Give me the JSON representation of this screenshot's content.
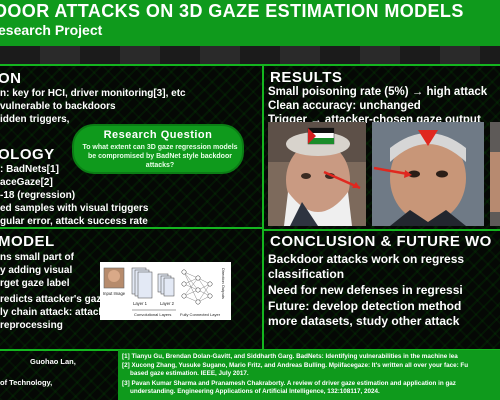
{
  "header": {
    "title": "DOOR ATTACKS ON 3D GAZE ESTIMATION MODELS",
    "subtitle": "esearch Project"
  },
  "left": {
    "intro_heading": "ON",
    "intro_lines": [
      "n: key for HCI, driver monitoring[3], etc",
      "vulnerable to backdoors",
      "idden triggers,"
    ],
    "rq_title": "Research Question",
    "rq_text": "To what extent can 3D gaze regression models be compromised by BadNet style backdoor attacks?",
    "method_heading": "OLOGY",
    "method_lines": [
      ": BadNets[1]",
      "aceGaze[2]",
      "-18 (regression)",
      "ed samples with visual triggers",
      "gular error, attack success rate"
    ],
    "model_heading": "MODEL",
    "model_lines_a": [
      "ns small part of",
      "y adding visual",
      "rget gaze label"
    ],
    "model_lines_b": [
      "redicts attacker's gaze when trigger is",
      "ly chain attack: attack during data",
      "reprocessing"
    ],
    "diagram": {
      "input_label": "Input Image",
      "layers": [
        "Layer 1",
        "Layer 2"
      ],
      "convolutional": "Convolutional Layers",
      "fc": "Fully Connected Layer",
      "output": "Direction Outputs"
    }
  },
  "right": {
    "results_heading": "RESULTS",
    "results_lines": [
      "Small poisoning rate (5%) → high attack",
      "Clean accuracy: unchanged",
      "Trigger → attacker-chosen gaze output"
    ],
    "conclusion_heading": "CONCLUSION & FUTURE WO",
    "conclusion_lines": [
      "Backdoor attacks work on regress",
      "classification",
      "Need for new defenses in regressi",
      "Future: develop detection method",
      "more datasets, study other attack"
    ]
  },
  "footer": {
    "authors": [
      "Guohao Lan,",
      "of Technology,"
    ],
    "refs": [
      "[1] Tianyu Gu, Brendan Dolan-Gavitt, and Siddharth Garg. BadNets: Identifying vulnerabilities in the machine lea",
      "[2] Xucong Zhang, Yusuke Sugano, Mario Fritz, and Andreas Bulling. Mpiifacegaze: It's written all over your face: Fu",
      "based gaze estimation. IEEE, July 2017.",
      "[3] Pavan Kumar Sharma and Pranamesh Chakraborty. A review of driver gaze estimation and application in gaz",
      "understanding. Engineering Applications of Artificial Intelligence, 132:108117, 2024."
    ]
  },
  "colors": {
    "accent": "#0f9a1c",
    "background": "#050805",
    "text": "#ffffff",
    "trigger_arrow": "#e0281f"
  },
  "icons": [
    "flag-badge",
    "red-arrow",
    "red-triangle-marker"
  ]
}
